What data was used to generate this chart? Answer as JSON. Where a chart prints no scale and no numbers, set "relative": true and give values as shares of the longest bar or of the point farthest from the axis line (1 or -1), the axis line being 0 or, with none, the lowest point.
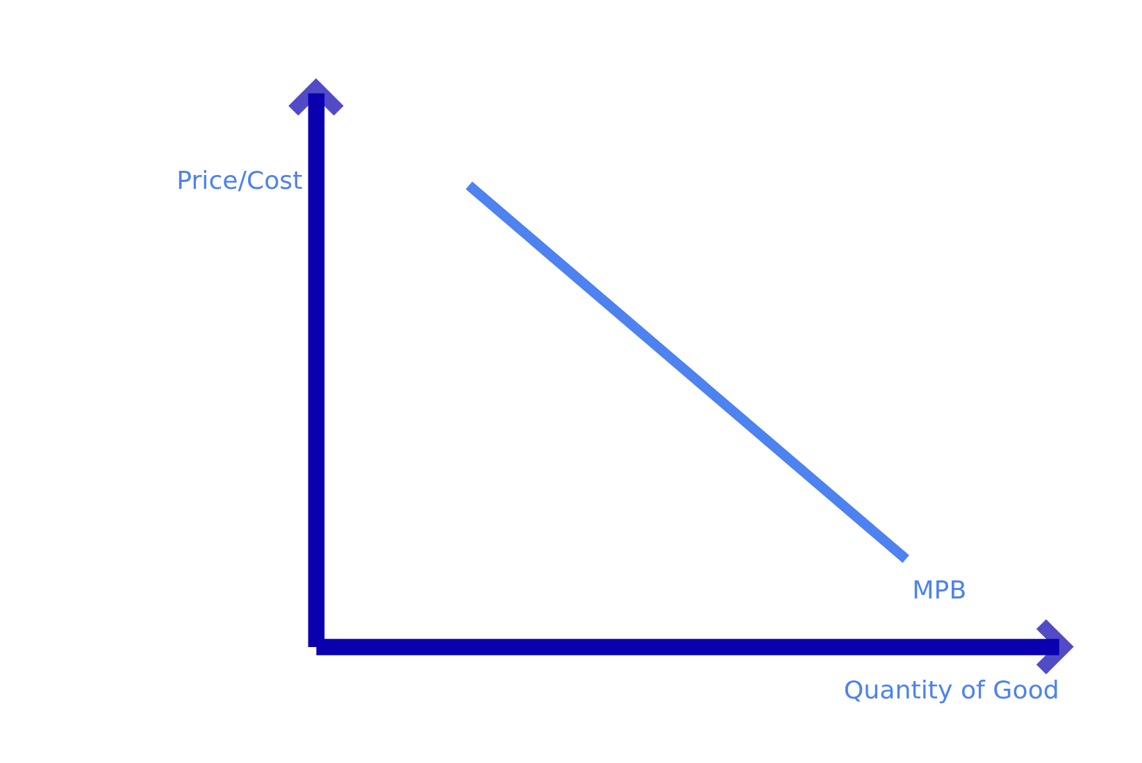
{
  "chart_data": {
    "type": "line",
    "relative": true,
    "xlabel": "Quantity of Good",
    "ylabel": "Price/Cost",
    "categories": [
      null,
      null
    ],
    "series": [
      {
        "name": "MPB",
        "color": "#4d82f0",
        "values": [
          1,
          0.19
        ]
      }
    ],
    "grid": false,
    "tick_labels": false,
    "marker": "none",
    "line_style": "solid"
  }
}
